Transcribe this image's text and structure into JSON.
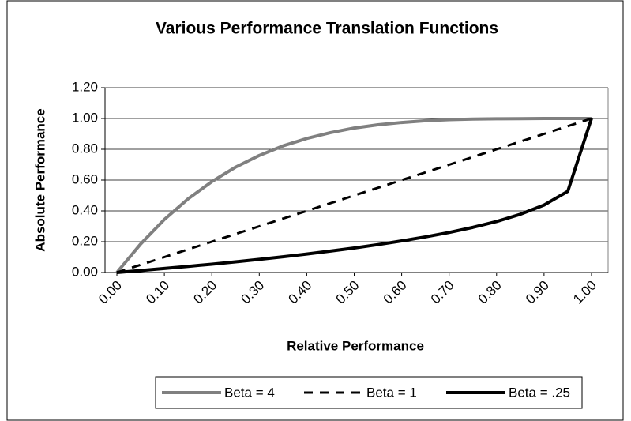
{
  "chart_data": {
    "type": "line",
    "title": "Various Performance Translation Functions",
    "xlabel": "Relative Performance",
    "ylabel": "Absolute Performance",
    "x": [
      0,
      0.05,
      0.1,
      0.15,
      0.2,
      0.25,
      0.3,
      0.35,
      0.4,
      0.45,
      0.5,
      0.55,
      0.6,
      0.65,
      0.7,
      0.75,
      0.8,
      0.85,
      0.9,
      0.95,
      1.0
    ],
    "series": [
      {
        "name": "Beta = 4",
        "color": "#808080",
        "dashed": false,
        "values": [
          0,
          0.185,
          0.344,
          0.478,
          0.59,
          0.684,
          0.76,
          0.822,
          0.87,
          0.908,
          0.938,
          0.959,
          0.974,
          0.985,
          0.992,
          0.996,
          0.998,
          0.999,
          1.0,
          1.0,
          1.0
        ]
      },
      {
        "name": "Beta = 1",
        "color": "#000000",
        "dashed": true,
        "values": [
          0,
          0.05,
          0.1,
          0.15,
          0.2,
          0.25,
          0.3,
          0.35,
          0.4,
          0.45,
          0.5,
          0.55,
          0.6,
          0.65,
          0.7,
          0.75,
          0.8,
          0.85,
          0.9,
          0.95,
          1.0
        ]
      },
      {
        "name": "Beta = .25",
        "color": "#000000",
        "dashed": false,
        "values": [
          0,
          0.013,
          0.026,
          0.04,
          0.054,
          0.069,
          0.085,
          0.102,
          0.12,
          0.139,
          0.159,
          0.181,
          0.205,
          0.231,
          0.26,
          0.293,
          0.331,
          0.378,
          0.438,
          0.527,
          1.0
        ]
      }
    ],
    "xlim": [
      -0.025,
      1.035
    ],
    "xticks": [
      {
        "value": 0,
        "label": "0.00"
      },
      {
        "value": 0.1,
        "label": "0.10"
      },
      {
        "value": 0.2,
        "label": "0.20"
      },
      {
        "value": 0.3,
        "label": "0.30"
      },
      {
        "value": 0.4,
        "label": "0.40"
      },
      {
        "value": 0.5,
        "label": "0.50"
      },
      {
        "value": 0.6,
        "label": "0.60"
      },
      {
        "value": 0.7,
        "label": "0.70"
      },
      {
        "value": 0.8,
        "label": "0.80"
      },
      {
        "value": 0.9,
        "label": "0.90"
      },
      {
        "value": 1.0,
        "label": "1.00"
      }
    ],
    "ylim": [
      0,
      1.2
    ],
    "yticks": [
      {
        "value": 0,
        "label": "0.00"
      },
      {
        "value": 0.2,
        "label": "0.20"
      },
      {
        "value": 0.4,
        "label": "0.40"
      },
      {
        "value": 0.6,
        "label": "0.60"
      },
      {
        "value": 0.8,
        "label": "0.80"
      },
      {
        "value": 1.0,
        "label": "1.00"
      },
      {
        "value": 1.2,
        "label": "1.20"
      }
    ],
    "grid": true,
    "legend": "bottom"
  }
}
